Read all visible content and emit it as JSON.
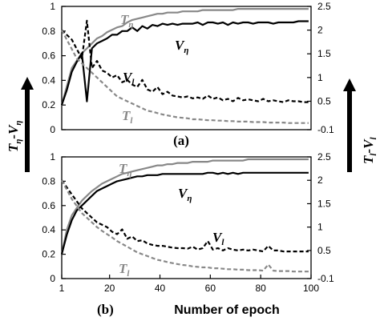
{
  "chart_data": [
    {
      "type": "line",
      "panel_label": "(a)",
      "x": [
        1,
        3,
        5,
        7,
        9,
        11,
        13,
        15,
        17,
        19,
        21,
        23,
        25,
        27,
        29,
        31,
        33,
        35,
        37,
        39,
        41,
        43,
        45,
        47,
        49,
        51,
        53,
        55,
        57,
        59,
        61,
        63,
        65,
        67,
        69,
        71,
        73,
        75,
        77,
        79,
        81,
        83,
        85,
        87,
        89,
        91,
        93,
        95,
        97,
        99
      ],
      "ylim_left": [
        0,
        1
      ],
      "ylim_right": [
        -0.1,
        2.5
      ],
      "left_ticks": [
        "0",
        "0.2",
        "0.4",
        "0.6",
        "0.8",
        "1"
      ],
      "right_ticks": [
        "-0.1",
        "0.5",
        "1",
        "1.5",
        "2",
        "2.5"
      ],
      "xlim": [
        1,
        100
      ],
      "series": [
        {
          "name": "Tη",
          "axis": "left",
          "style": "solid",
          "color": "#888888",
          "values": [
            0.2,
            0.35,
            0.5,
            0.56,
            0.62,
            0.66,
            0.7,
            0.74,
            0.76,
            0.79,
            0.81,
            0.83,
            0.84,
            0.87,
            0.89,
            0.9,
            0.91,
            0.92,
            0.93,
            0.94,
            0.94,
            0.95,
            0.95,
            0.95,
            0.96,
            0.96,
            0.96,
            0.96,
            0.97,
            0.97,
            0.97,
            0.97,
            0.97,
            0.97,
            0.97,
            0.98,
            0.98,
            0.98,
            0.98,
            0.98,
            0.98,
            0.98,
            0.98,
            0.98,
            0.98,
            0.98,
            0.98,
            0.98,
            0.98,
            0.98
          ]
        },
        {
          "name": "Vη",
          "axis": "left",
          "style": "solid",
          "color": "#000000",
          "values": [
            0.2,
            0.32,
            0.47,
            0.55,
            0.62,
            0.23,
            0.66,
            0.7,
            0.72,
            0.74,
            0.77,
            0.77,
            0.8,
            0.8,
            0.83,
            0.8,
            0.84,
            0.82,
            0.85,
            0.84,
            0.86,
            0.85,
            0.86,
            0.85,
            0.86,
            0.86,
            0.86,
            0.87,
            0.85,
            0.87,
            0.87,
            0.86,
            0.87,
            0.85,
            0.87,
            0.86,
            0.87,
            0.87,
            0.86,
            0.87,
            0.87,
            0.87,
            0.86,
            0.87,
            0.87,
            0.87,
            0.87,
            0.88,
            0.88,
            0.88
          ]
        },
        {
          "name": "Vl",
          "axis": "right",
          "style": "dashed",
          "color": "#000000",
          "values": [
            2.0,
            1.9,
            1.8,
            1.6,
            1.4,
            2.2,
            1.2,
            1.35,
            1.15,
            1.1,
            1.0,
            1.05,
            0.9,
            0.95,
            0.85,
            0.8,
            0.95,
            0.75,
            0.7,
            0.8,
            0.65,
            0.7,
            0.62,
            0.6,
            0.58,
            0.6,
            0.56,
            0.58,
            0.55,
            0.62,
            0.55,
            0.58,
            0.52,
            0.55,
            0.5,
            0.57,
            0.52,
            0.54,
            0.52,
            0.5,
            0.55,
            0.5,
            0.52,
            0.5,
            0.48,
            0.52,
            0.5,
            0.5,
            0.48,
            0.48
          ]
        },
        {
          "name": "Tl",
          "axis": "right",
          "style": "dashed",
          "color": "#888888",
          "values": [
            2.0,
            1.8,
            1.6,
            1.4,
            1.3,
            1.2,
            1.1,
            1.0,
            0.9,
            0.8,
            0.7,
            0.6,
            0.55,
            0.5,
            0.45,
            0.4,
            0.35,
            0.3,
            0.28,
            0.25,
            0.22,
            0.2,
            0.18,
            0.16,
            0.15,
            0.14,
            0.12,
            0.12,
            0.11,
            0.1,
            0.1,
            0.09,
            0.09,
            0.08,
            0.08,
            0.07,
            0.07,
            0.07,
            0.06,
            0.06,
            0.06,
            0.05,
            0.05,
            0.05,
            0.05,
            0.04,
            0.04,
            0.04,
            0.04,
            0.04
          ]
        }
      ]
    },
    {
      "type": "line",
      "panel_label": "(b)",
      "x": [
        1,
        3,
        5,
        7,
        9,
        11,
        13,
        15,
        17,
        19,
        21,
        23,
        25,
        27,
        29,
        31,
        33,
        35,
        37,
        39,
        41,
        43,
        45,
        47,
        49,
        51,
        53,
        55,
        57,
        59,
        61,
        63,
        65,
        67,
        69,
        71,
        73,
        75,
        77,
        79,
        81,
        83,
        85,
        87,
        89,
        91,
        93,
        95,
        97,
        99
      ],
      "ylim_left": [
        0,
        1
      ],
      "ylim_right": [
        -0.1,
        2.5
      ],
      "left_ticks": [
        "0",
        "0.2",
        "0.4",
        "0.6",
        "0.8",
        "1"
      ],
      "right_ticks": [
        "-0.1",
        "0.5",
        "1",
        "1.5",
        "2",
        "2.5"
      ],
      "x_ticks": [
        "1",
        "20",
        "40",
        "60",
        "80",
        "100"
      ],
      "xlim": [
        1,
        100
      ],
      "xlabel": "Number of epoch",
      "series": [
        {
          "name": "Tη",
          "axis": "left",
          "style": "solid",
          "color": "#888888",
          "values": [
            0.2,
            0.4,
            0.52,
            0.58,
            0.64,
            0.68,
            0.72,
            0.75,
            0.78,
            0.8,
            0.82,
            0.84,
            0.86,
            0.87,
            0.88,
            0.89,
            0.9,
            0.91,
            0.92,
            0.93,
            0.93,
            0.94,
            0.94,
            0.95,
            0.95,
            0.95,
            0.96,
            0.96,
            0.96,
            0.96,
            0.97,
            0.97,
            0.97,
            0.97,
            0.97,
            0.97,
            0.97,
            0.98,
            0.98,
            0.98,
            0.98,
            0.98,
            0.98,
            0.98,
            0.98,
            0.98,
            0.98,
            0.98,
            0.98,
            0.98
          ]
        },
        {
          "name": "Vη",
          "axis": "left",
          "style": "solid",
          "color": "#000000",
          "values": [
            0.2,
            0.36,
            0.48,
            0.56,
            0.6,
            0.64,
            0.68,
            0.72,
            0.74,
            0.76,
            0.78,
            0.8,
            0.81,
            0.82,
            0.83,
            0.84,
            0.84,
            0.85,
            0.85,
            0.85,
            0.86,
            0.86,
            0.86,
            0.86,
            0.86,
            0.86,
            0.86,
            0.86,
            0.86,
            0.87,
            0.87,
            0.86,
            0.87,
            0.86,
            0.87,
            0.86,
            0.87,
            0.87,
            0.87,
            0.87,
            0.87,
            0.87,
            0.87,
            0.87,
            0.87,
            0.87,
            0.87,
            0.87,
            0.87,
            0.87
          ]
        },
        {
          "name": "Vl",
          "axis": "right",
          "style": "dashed",
          "color": "#000000",
          "values": [
            2.0,
            1.85,
            1.7,
            1.55,
            1.4,
            1.3,
            1.2,
            1.1,
            1.05,
            1.0,
            0.9,
            0.85,
            0.95,
            0.75,
            0.8,
            0.7,
            0.72,
            0.65,
            0.62,
            0.6,
            0.6,
            0.58,
            0.56,
            0.55,
            0.55,
            0.54,
            0.58,
            0.52,
            0.55,
            0.7,
            0.52,
            0.55,
            0.5,
            0.55,
            0.52,
            0.5,
            0.52,
            0.5,
            0.52,
            0.5,
            0.48,
            0.6,
            0.5,
            0.5,
            0.48,
            0.48,
            0.48,
            0.48,
            0.48,
            0.48
          ]
        },
        {
          "name": "Tl",
          "axis": "right",
          "style": "dashed",
          "color": "#888888",
          "values": [
            2.0,
            1.8,
            1.6,
            1.45,
            1.3,
            1.2,
            1.1,
            1.0,
            0.92,
            0.85,
            0.78,
            0.7,
            0.64,
            0.58,
            0.52,
            0.46,
            0.42,
            0.38,
            0.34,
            0.3,
            0.28,
            0.25,
            0.23,
            0.21,
            0.19,
            0.18,
            0.16,
            0.15,
            0.14,
            0.14,
            0.12,
            0.12,
            0.11,
            0.1,
            0.1,
            0.09,
            0.09,
            0.08,
            0.08,
            0.08,
            0.07,
            0.2,
            0.07,
            0.06,
            0.06,
            0.06,
            0.05,
            0.05,
            0.05,
            0.05
          ]
        }
      ]
    }
  ],
  "axis_labels": {
    "left_main": "T",
    "left_sub1": "η",
    "left_mid": "-V",
    "left_sub2": "η",
    "right_main": "T",
    "right_sub1": "l",
    "right_mid": "-V",
    "right_sub2": "l"
  },
  "series_labels": {
    "t_eta": "T",
    "t_eta_sub": "η",
    "v_eta": "V",
    "v_eta_sub": "η",
    "v_l": "V",
    "v_l_sub": "l",
    "t_l": "T",
    "t_l_sub": "l"
  },
  "colors": {
    "gray": "#888888",
    "black": "#000000"
  }
}
